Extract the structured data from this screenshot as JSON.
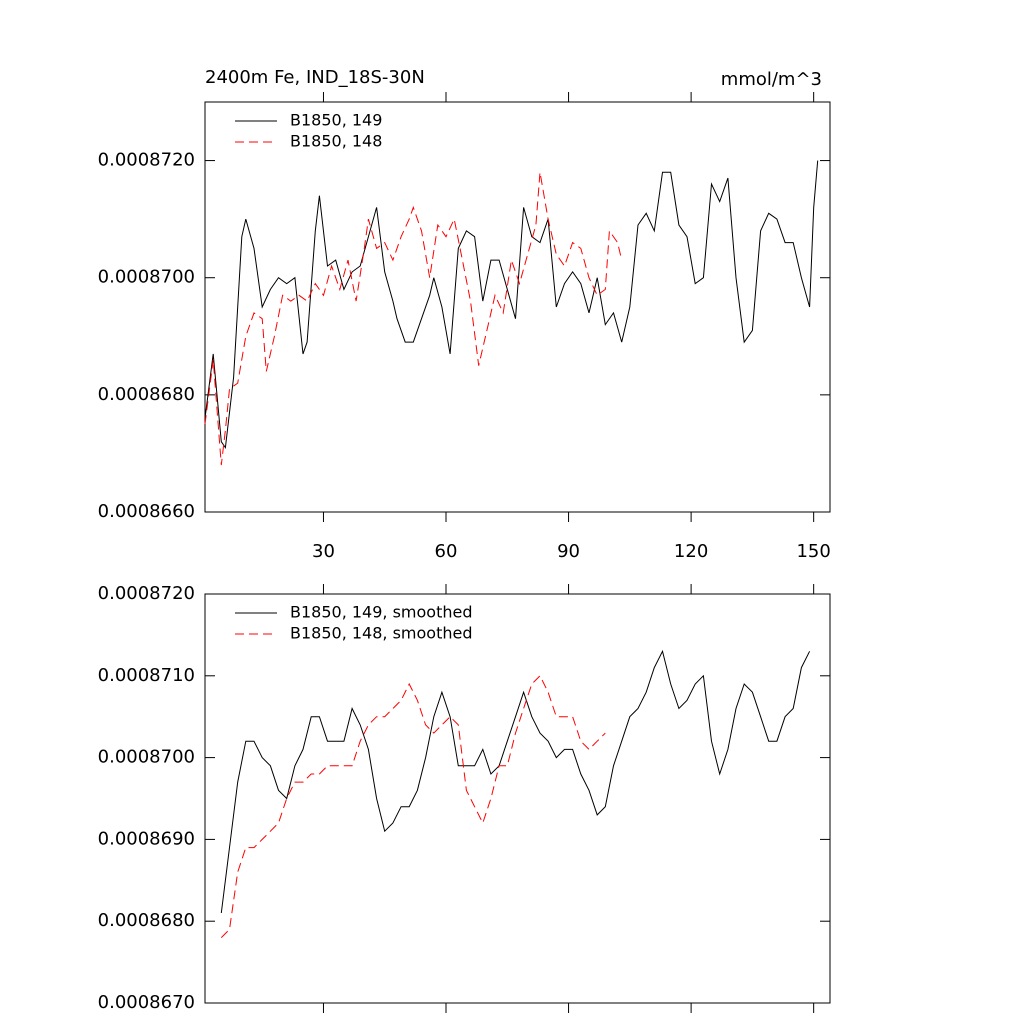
{
  "chart_data": [
    {
      "type": "line",
      "title": "2400m Fe, IND_18S-30N",
      "units": "mmol/m^3",
      "xlim": [
        1,
        154
      ],
      "xticks": [
        30,
        60,
        90,
        120,
        150
      ],
      "xtick_labels": true,
      "ylim": [
        0.000866,
        0.000873
      ],
      "yticks": [
        {
          "value": 0.000866,
          "label": "0.0008660"
        },
        {
          "value": 0.000868,
          "label": "0.0008680"
        },
        {
          "value": 0.00087,
          "label": "0.0008700"
        },
        {
          "value": 0.000872,
          "label": "0.0008720"
        }
      ],
      "legend": "upper left",
      "series": [
        {
          "name": "B1850, 149",
          "color": "#000000",
          "dashed": false,
          "x": [
            1,
            3,
            5,
            6,
            8,
            10,
            11,
            13,
            15,
            17,
            19,
            21,
            23,
            25,
            26,
            28,
            29,
            31,
            33,
            35,
            37,
            39,
            41,
            43,
            45,
            47,
            48,
            50,
            52,
            54,
            56,
            57,
            59,
            61,
            63,
            65,
            67,
            69,
            71,
            73,
            75,
            77,
            79,
            81,
            83,
            85,
            87,
            89,
            91,
            93,
            95,
            97,
            99,
            101,
            103,
            105,
            107,
            109,
            111,
            113,
            115,
            117,
            119,
            121,
            123,
            125,
            127,
            129,
            131,
            133,
            135,
            137,
            139,
            141,
            143,
            145,
            147,
            149,
            150,
            151
          ],
          "values": [
            0.0008676,
            0.0008687,
            0.0008672,
            0.0008671,
            0.0008683,
            0.0008707,
            0.000871,
            0.0008705,
            0.0008695,
            0.0008698,
            0.00087,
            0.0008699,
            0.00087,
            0.0008687,
            0.0008689,
            0.0008708,
            0.0008714,
            0.0008702,
            0.0008703,
            0.0008698,
            0.0008701,
            0.0008702,
            0.0008707,
            0.0008712,
            0.0008701,
            0.0008696,
            0.0008693,
            0.0008689,
            0.0008689,
            0.0008693,
            0.0008697,
            0.00087,
            0.0008695,
            0.0008687,
            0.0008705,
            0.0008708,
            0.0008707,
            0.0008696,
            0.0008703,
            0.0008703,
            0.0008698,
            0.0008693,
            0.0008712,
            0.0008707,
            0.0008706,
            0.000871,
            0.0008695,
            0.0008699,
            0.0008701,
            0.0008699,
            0.0008694,
            0.00087,
            0.0008692,
            0.0008694,
            0.0008689,
            0.0008695,
            0.0008709,
            0.0008711,
            0.0008708,
            0.0008718,
            0.0008718,
            0.0008709,
            0.0008707,
            0.0008699,
            0.00087,
            0.0008716,
            0.0008713,
            0.0008717,
            0.00087,
            0.0008689,
            0.0008691,
            0.0008708,
            0.0008711,
            0.000871,
            0.0008706,
            0.0008706,
            0.00087,
            0.0008695,
            0.0008712,
            0.000872
          ]
        },
        {
          "name": "B1850, 148",
          "color": "#ff0000",
          "dashed": true,
          "x": [
            1,
            3,
            5,
            6,
            7,
            9,
            11,
            13,
            15,
            16,
            18,
            20,
            22,
            24,
            26,
            28,
            30,
            32,
            34,
            36,
            38,
            40,
            41,
            43,
            45,
            47,
            49,
            51,
            52,
            54,
            56,
            58,
            60,
            62,
            64,
            66,
            68,
            70,
            72,
            74,
            76,
            78,
            80,
            82,
            83,
            85,
            87,
            89,
            91,
            93,
            95,
            97,
            99,
            100,
            102,
            103
          ],
          "values": [
            0.0008675,
            0.0008686,
            0.0008668,
            0.0008674,
            0.0008681,
            0.0008682,
            0.000869,
            0.0008694,
            0.0008693,
            0.0008684,
            0.000869,
            0.0008697,
            0.0008696,
            0.0008697,
            0.0008696,
            0.0008699,
            0.0008697,
            0.0008702,
            0.0008698,
            0.0008703,
            0.0008696,
            0.0008705,
            0.000871,
            0.0008705,
            0.0008706,
            0.0008703,
            0.0008707,
            0.000871,
            0.0008712,
            0.0008708,
            0.00087,
            0.0008709,
            0.0008707,
            0.000871,
            0.0008703,
            0.0008696,
            0.0008685,
            0.0008691,
            0.0008697,
            0.0008694,
            0.0008703,
            0.0008699,
            0.0008704,
            0.0008709,
            0.0008718,
            0.000871,
            0.0008704,
            0.0008702,
            0.0008706,
            0.0008705,
            0.00087,
            0.0008697,
            0.0008698,
            0.0008708,
            0.0008706,
            0.0008703
          ]
        }
      ]
    },
    {
      "type": "line",
      "xlim": [
        1,
        154
      ],
      "xticks": [
        30,
        60,
        90,
        120,
        150
      ],
      "xtick_labels": false,
      "ylim": [
        0.000867,
        0.000872
      ],
      "yticks": [
        {
          "value": 0.000867,
          "label": "0.0008670"
        },
        {
          "value": 0.000868,
          "label": "0.0008680"
        },
        {
          "value": 0.000869,
          "label": "0.0008690"
        },
        {
          "value": 0.00087,
          "label": "0.0008700"
        },
        {
          "value": 0.000871,
          "label": "0.0008710"
        },
        {
          "value": 0.000872,
          "label": "0.0008720"
        }
      ],
      "legend": "upper left",
      "series": [
        {
          "name": "B1850, 149, smoothed",
          "color": "#000000",
          "dashed": false,
          "x": [
            5,
            7,
            9,
            11,
            13,
            15,
            17,
            19,
            21,
            23,
            25,
            27,
            29,
            31,
            33,
            35,
            37,
            39,
            41,
            43,
            45,
            47,
            49,
            51,
            53,
            55,
            57,
            59,
            61,
            63,
            65,
            67,
            69,
            71,
            73,
            75,
            77,
            79,
            81,
            83,
            85,
            87,
            89,
            91,
            93,
            95,
            97,
            99,
            101,
            103,
            105,
            107,
            109,
            111,
            113,
            115,
            117,
            119,
            121,
            123,
            125,
            127,
            129,
            131,
            133,
            135,
            137,
            139,
            141,
            143,
            145,
            147,
            149
          ],
          "values": [
            0.0008681,
            0.0008689,
            0.0008697,
            0.0008702,
            0.0008702,
            0.00087,
            0.0008699,
            0.0008696,
            0.0008695,
            0.0008699,
            0.0008701,
            0.0008705,
            0.0008705,
            0.0008702,
            0.0008702,
            0.0008702,
            0.0008706,
            0.0008704,
            0.0008701,
            0.0008695,
            0.0008691,
            0.0008692,
            0.0008694,
            0.0008694,
            0.0008696,
            0.00087,
            0.0008705,
            0.0008708,
            0.0008705,
            0.0008699,
            0.0008699,
            0.0008699,
            0.0008701,
            0.0008698,
            0.0008699,
            0.0008702,
            0.0008705,
            0.0008708,
            0.0008705,
            0.0008703,
            0.0008702,
            0.00087,
            0.0008701,
            0.0008701,
            0.0008698,
            0.0008696,
            0.0008693,
            0.0008694,
            0.0008699,
            0.0008702,
            0.0008705,
            0.0008706,
            0.0008708,
            0.0008711,
            0.0008713,
            0.0008709,
            0.0008706,
            0.0008707,
            0.0008709,
            0.000871,
            0.0008702,
            0.0008698,
            0.0008701,
            0.0008706,
            0.0008709,
            0.0008708,
            0.0008705,
            0.0008702,
            0.0008702,
            0.0008705,
            0.0008706,
            0.0008711,
            0.0008713
          ]
        },
        {
          "name": "B1850, 148, smoothed",
          "color": "#ff0000",
          "dashed": true,
          "x": [
            5,
            7,
            9,
            11,
            13,
            15,
            17,
            19,
            21,
            23,
            25,
            27,
            29,
            31,
            33,
            35,
            37,
            39,
            41,
            43,
            45,
            47,
            49,
            51,
            53,
            55,
            57,
            59,
            61,
            63,
            65,
            67,
            69,
            71,
            73,
            75,
            77,
            79,
            81,
            83,
            85,
            87,
            89,
            91,
            93,
            95,
            97,
            99
          ],
          "values": [
            0.0008678,
            0.0008679,
            0.0008686,
            0.0008689,
            0.0008689,
            0.000869,
            0.0008691,
            0.0008692,
            0.0008695,
            0.0008697,
            0.0008697,
            0.0008698,
            0.0008698,
            0.0008699,
            0.0008699,
            0.0008699,
            0.0008699,
            0.0008702,
            0.0008704,
            0.0008705,
            0.0008705,
            0.0008706,
            0.0008707,
            0.0008709,
            0.0008707,
            0.0008704,
            0.0008703,
            0.0008704,
            0.0008705,
            0.0008704,
            0.0008696,
            0.0008694,
            0.0008692,
            0.0008695,
            0.0008699,
            0.0008699,
            0.0008703,
            0.0008706,
            0.0008709,
            0.000871,
            0.0008708,
            0.0008705,
            0.0008705,
            0.0008705,
            0.0008702,
            0.0008701,
            0.0008702,
            0.0008703
          ]
        }
      ]
    }
  ]
}
